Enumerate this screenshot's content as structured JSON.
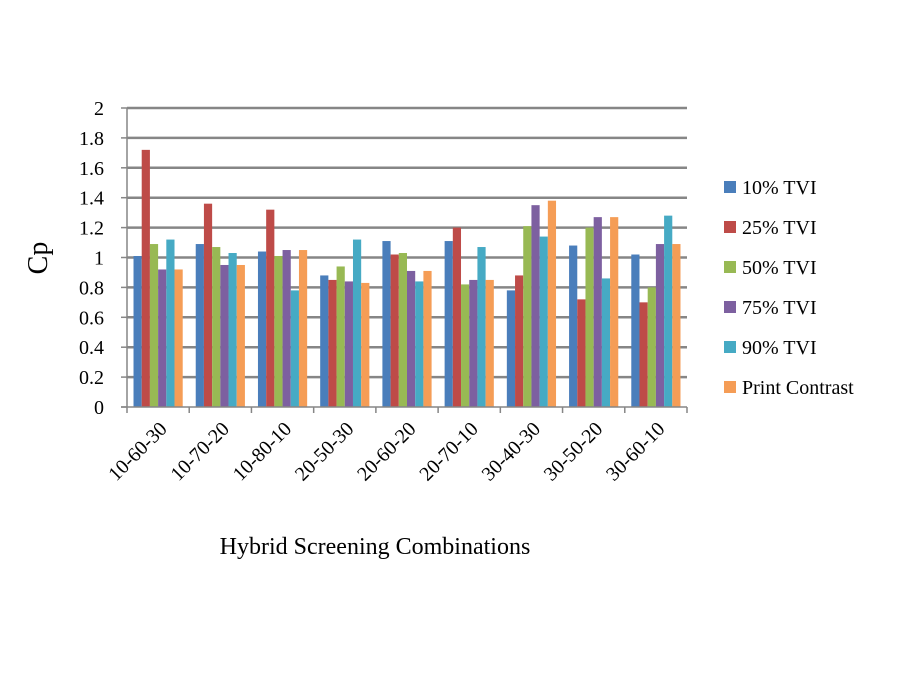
{
  "chart_data": {
    "type": "bar",
    "title": "",
    "xlabel": "Hybrid Screening Combinations",
    "ylabel": "Cp",
    "ylim": [
      0,
      2
    ],
    "yticks": [
      0,
      0.2,
      0.4,
      0.6,
      0.8,
      1,
      1.2,
      1.4,
      1.6,
      1.8,
      2
    ],
    "ytick_labels": [
      "0",
      "0.2",
      "0.4",
      "0.6",
      "0.8",
      "1",
      "1.2",
      "1.4",
      "1.6",
      "1.8",
      "2"
    ],
    "grid": "horizontal",
    "legend_position": "right",
    "categories": [
      "10-60-30",
      "10-70-20",
      "10-80-10",
      "20-50-30",
      "20-60-20",
      "20-70-10",
      "30-40-30",
      "30-50-20",
      "30-60-10"
    ],
    "series": [
      {
        "name": "10% TVI",
        "color": "#4a7ebb",
        "values": [
          1.01,
          1.09,
          1.04,
          0.88,
          1.11,
          1.11,
          0.78,
          1.08,
          1.02
        ]
      },
      {
        "name": "25% TVI",
        "color": "#be4b48",
        "values": [
          1.72,
          1.36,
          1.32,
          0.85,
          1.02,
          1.2,
          0.88,
          0.72,
          0.7
        ]
      },
      {
        "name": "50% TVI",
        "color": "#98b954",
        "values": [
          1.09,
          1.07,
          1.01,
          0.94,
          1.03,
          0.82,
          1.21,
          1.2,
          0.8
        ]
      },
      {
        "name": "75% TVI",
        "color": "#7d60a0",
        "values": [
          0.92,
          0.95,
          1.05,
          0.84,
          0.91,
          0.85,
          1.35,
          1.27,
          1.09
        ]
      },
      {
        "name": "90% TVI",
        "color": "#46aac4",
        "values": [
          1.12,
          1.03,
          0.78,
          1.12,
          0.84,
          1.07,
          1.14,
          0.86,
          1.28
        ]
      },
      {
        "name": "Print Contrast",
        "color": "#f59d56",
        "values": [
          0.92,
          0.95,
          1.05,
          0.83,
          0.91,
          0.85,
          1.38,
          1.27,
          1.09
        ]
      }
    ]
  }
}
